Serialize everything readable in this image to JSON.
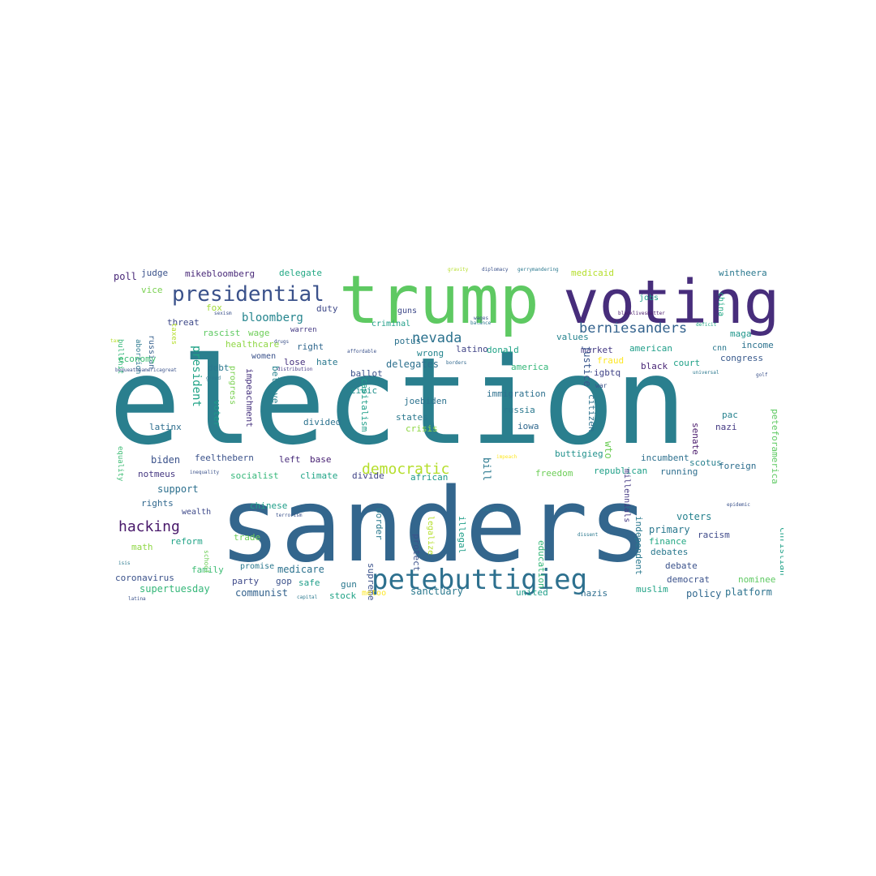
{
  "wordcloud": {
    "words": [
      {
        "text": "election",
        "color": "#2a7f8e"
      },
      {
        "text": "sanders",
        "color": "#33668d"
      },
      {
        "text": "trump",
        "color": "#5ec962"
      },
      {
        "text": "voting",
        "color": "#472d7b"
      },
      {
        "text": "petebuttigieg",
        "color": "#2d708e"
      },
      {
        "text": "presidential",
        "color": "#3b528b"
      },
      {
        "text": "berniesanders",
        "color": "#33628d"
      },
      {
        "text": "democratic",
        "color": "#b5de2b"
      },
      {
        "text": "hacking",
        "color": "#48186a"
      },
      {
        "text": "nevada",
        "color": "#2c728e"
      },
      {
        "text": "bloomberg",
        "color": "#25858e"
      },
      {
        "text": "mikebloomberg",
        "color": "#482878"
      },
      {
        "text": "delegate",
        "color": "#22a884"
      },
      {
        "text": "judge",
        "color": "#3b528b"
      },
      {
        "text": "poll",
        "color": "#482878"
      },
      {
        "text": "medicaid",
        "color": "#b5de2b"
      },
      {
        "text": "wintheera",
        "color": "#2a788e"
      },
      {
        "text": "vice",
        "color": "#7ad151"
      },
      {
        "text": "russian",
        "color": "#355f8d"
      },
      {
        "text": "abortion",
        "color": "#2a788e"
      },
      {
        "text": "bullshit",
        "color": "#35b779"
      },
      {
        "text": "threat",
        "color": "#3e4989"
      },
      {
        "text": "fox",
        "color": "#a0da39"
      },
      {
        "text": "rascist",
        "color": "#5ec962"
      },
      {
        "text": "wage",
        "color": "#6ece58"
      },
      {
        "text": "healthcare",
        "color": "#8fd744"
      },
      {
        "text": "duty",
        "color": "#3e4989"
      },
      {
        "text": "warren",
        "color": "#443983"
      },
      {
        "text": "right",
        "color": "#31688e"
      },
      {
        "text": "lose",
        "color": "#46327e"
      },
      {
        "text": "guns",
        "color": "#3e4989"
      },
      {
        "text": "criminal",
        "color": "#1f9e89"
      },
      {
        "text": "potus",
        "color": "#2c728e"
      },
      {
        "text": "hate",
        "color": "#2a788e"
      },
      {
        "text": "ballot",
        "color": "#3b528b"
      },
      {
        "text": "delegates",
        "color": "#2d708e"
      },
      {
        "text": "wrong",
        "color": "#25858e"
      },
      {
        "text": "civic",
        "color": "#21918c"
      },
      {
        "text": "latino",
        "color": "#414487"
      },
      {
        "text": "donald",
        "color": "#20a486"
      },
      {
        "text": "jobs",
        "color": "#1f9e89"
      },
      {
        "text": "values",
        "color": "#25838e"
      },
      {
        "text": "maga",
        "color": "#1f968b"
      },
      {
        "text": "china",
        "color": "#22a884"
      },
      {
        "text": "market",
        "color": "#443983"
      },
      {
        "text": "american",
        "color": "#1f9e89"
      },
      {
        "text": "fraud",
        "color": "#fde725"
      },
      {
        "text": "court",
        "color": "#1fa187"
      },
      {
        "text": "congress",
        "color": "#38598c"
      },
      {
        "text": "income",
        "color": "#2c728e"
      },
      {
        "text": "black",
        "color": "#482575"
      },
      {
        "text": "igbtq",
        "color": "#414487"
      },
      {
        "text": "america",
        "color": "#35b779"
      },
      {
        "text": "justice",
        "color": "#39568c"
      },
      {
        "text": "immigration",
        "color": "#2d708e"
      },
      {
        "text": "joebiden",
        "color": "#2c728e"
      },
      {
        "text": "president",
        "color": "#20a386"
      },
      {
        "text": "economy",
        "color": "#3dbc74"
      },
      {
        "text": "debt",
        "color": "#2a788e"
      },
      {
        "text": "impeachment",
        "color": "#46327e"
      },
      {
        "text": "believe",
        "color": "#26828e"
      },
      {
        "text": "voter",
        "color": "#1e9b8a"
      },
      {
        "text": "progress",
        "color": "#7ad151"
      },
      {
        "text": "latinx",
        "color": "#2e6e8e"
      },
      {
        "text": "divided",
        "color": "#2c728e"
      },
      {
        "text": "states",
        "color": "#2a788e"
      },
      {
        "text": "crisis",
        "color": "#8fd744"
      },
      {
        "text": "capitalism",
        "color": "#1f9e89"
      },
      {
        "text": "russia",
        "color": "#2a788e"
      },
      {
        "text": "iowa",
        "color": "#31688e"
      },
      {
        "text": "citizen",
        "color": "#2c728e"
      },
      {
        "text": "pac",
        "color": "#26828e"
      },
      {
        "text": "nazi",
        "color": "#443983"
      },
      {
        "text": "peteforamerica",
        "color": "#5ec962"
      },
      {
        "text": "senate",
        "color": "#48186a"
      },
      {
        "text": "scotus",
        "color": "#27808e"
      },
      {
        "text": "buttigieg",
        "color": "#21918c"
      },
      {
        "text": "incumbent",
        "color": "#2d708e"
      },
      {
        "text": "foreign",
        "color": "#2e6e8e"
      },
      {
        "text": "equality",
        "color": "#3dbc74"
      },
      {
        "text": "biden",
        "color": "#3b528b"
      },
      {
        "text": "feelthebern",
        "color": "#3b528b"
      },
      {
        "text": "left",
        "color": "#472a7a"
      },
      {
        "text": "base",
        "color": "#482173"
      },
      {
        "text": "notmeus",
        "color": "#453781"
      },
      {
        "text": "socialist",
        "color": "#35b779"
      },
      {
        "text": "climate",
        "color": "#20a486"
      },
      {
        "text": "divide",
        "color": "#414487"
      },
      {
        "text": "african",
        "color": "#1f9a8a"
      },
      {
        "text": "freedom",
        "color": "#6ece58"
      },
      {
        "text": "republican",
        "color": "#1fa088"
      },
      {
        "text": "running",
        "color": "#2e6e8e"
      },
      {
        "text": "support",
        "color": "#2d708e"
      },
      {
        "text": "rights",
        "color": "#31688e"
      },
      {
        "text": "wealth",
        "color": "#3e4989"
      },
      {
        "text": "chinese",
        "color": "#1f9e89"
      },
      {
        "text": "millennials",
        "color": "#443983"
      },
      {
        "text": "voters",
        "color": "#26828e"
      },
      {
        "text": "primary",
        "color": "#2a788e"
      },
      {
        "text": "finance",
        "color": "#22a884"
      },
      {
        "text": "racism",
        "color": "#3e4989"
      },
      {
        "text": "reform",
        "color": "#20a386"
      },
      {
        "text": "math",
        "color": "#8fd744"
      },
      {
        "text": "trade",
        "color": "#6ece58"
      },
      {
        "text": "promise",
        "color": "#2a788e"
      },
      {
        "text": "family",
        "color": "#3dbc74"
      },
      {
        "text": "medicare",
        "color": "#2c728e"
      },
      {
        "text": "coronavirus",
        "color": "#3b528b"
      },
      {
        "text": "party",
        "color": "#3e4989"
      },
      {
        "text": "gop",
        "color": "#3b528b"
      },
      {
        "text": "safe",
        "color": "#1f9e89"
      },
      {
        "text": "gun",
        "color": "#2a788e"
      },
      {
        "text": "supertuesday",
        "color": "#35b779"
      },
      {
        "text": "communist",
        "color": "#33628d"
      },
      {
        "text": "stock",
        "color": "#20a386"
      },
      {
        "text": "sanctuary",
        "color": "#2a788e"
      },
      {
        "text": "united",
        "color": "#1f9e89"
      },
      {
        "text": "nazis",
        "color": "#2e6e8e"
      },
      {
        "text": "muslim",
        "color": "#20a386"
      },
      {
        "text": "policy",
        "color": "#31688e"
      },
      {
        "text": "platform",
        "color": "#2c728e"
      },
      {
        "text": "nominee",
        "color": "#5ec962"
      },
      {
        "text": "debate",
        "color": "#3b528b"
      },
      {
        "text": "debates",
        "color": "#2a788e"
      },
      {
        "text": "democrat",
        "color": "#3b528b"
      },
      {
        "text": "independent",
        "color": "#2a788e"
      },
      {
        "text": "education",
        "color": "#35b779"
      },
      {
        "text": "christian",
        "color": "#1fa187"
      },
      {
        "text": "protect",
        "color": "#3b528b"
      },
      {
        "text": "legalize",
        "color": "#b5de2b"
      },
      {
        "text": "illegal",
        "color": "#1f9e89"
      },
      {
        "text": "supreme",
        "color": "#3b528b"
      },
      {
        "text": "border",
        "color": "#2a788e"
      },
      {
        "text": "metoo",
        "color": "#fde725"
      },
      {
        "text": "taxes",
        "color": "#b5de2b"
      },
      {
        "text": "wto",
        "color": "#6ece58"
      },
      {
        "text": "bill",
        "color": "#2a788e"
      },
      {
        "text": "gravity",
        "color": "#b5de2b"
      },
      {
        "text": "diplomacy",
        "color": "#3b528b"
      },
      {
        "text": "gerrymandering",
        "color": "#2a788e"
      },
      {
        "text": "balance",
        "color": "#2a788e"
      },
      {
        "text": "wages",
        "color": "#3b528b"
      },
      {
        "text": "blacklivesmatter",
        "color": "#48186a"
      },
      {
        "text": "deficit",
        "color": "#22a884"
      },
      {
        "text": "affordable",
        "color": "#3b528b"
      },
      {
        "text": "borders",
        "color": "#31688e"
      },
      {
        "text": "distribution",
        "color": "#443983"
      },
      {
        "text": "universal",
        "color": "#2a788e"
      },
      {
        "text": "golf",
        "color": "#3b528b"
      },
      {
        "text": "bequeatheamericagreat",
        "color": "#3b528b"
      },
      {
        "text": "greed",
        "color": "#2a788e"
      },
      {
        "text": "inequality",
        "color": "#3b528b"
      },
      {
        "text": "impeach",
        "color": "#fde725"
      },
      {
        "text": "melania",
        "color": "#2a788e"
      },
      {
        "text": "terrorism",
        "color": "#3b528b"
      },
      {
        "text": "dissent",
        "color": "#2a788e"
      },
      {
        "text": "epidemic",
        "color": "#3b528b"
      },
      {
        "text": "capital",
        "color": "#2a788e"
      },
      {
        "text": "latina",
        "color": "#3b528b"
      },
      {
        "text": "isis",
        "color": "#2a788e"
      },
      {
        "text": "drugs",
        "color": "#3b528b"
      },
      {
        "text": "war",
        "color": "#3b528b"
      },
      {
        "text": "tax",
        "color": "#b5de2b"
      },
      {
        "text": "sexism",
        "color": "#3b528b"
      },
      {
        "text": "cnn",
        "color": "#2a788e"
      },
      {
        "text": "women",
        "color": "#3b528b"
      },
      {
        "text": "school",
        "color": "#6ece58"
      }
    ]
  }
}
